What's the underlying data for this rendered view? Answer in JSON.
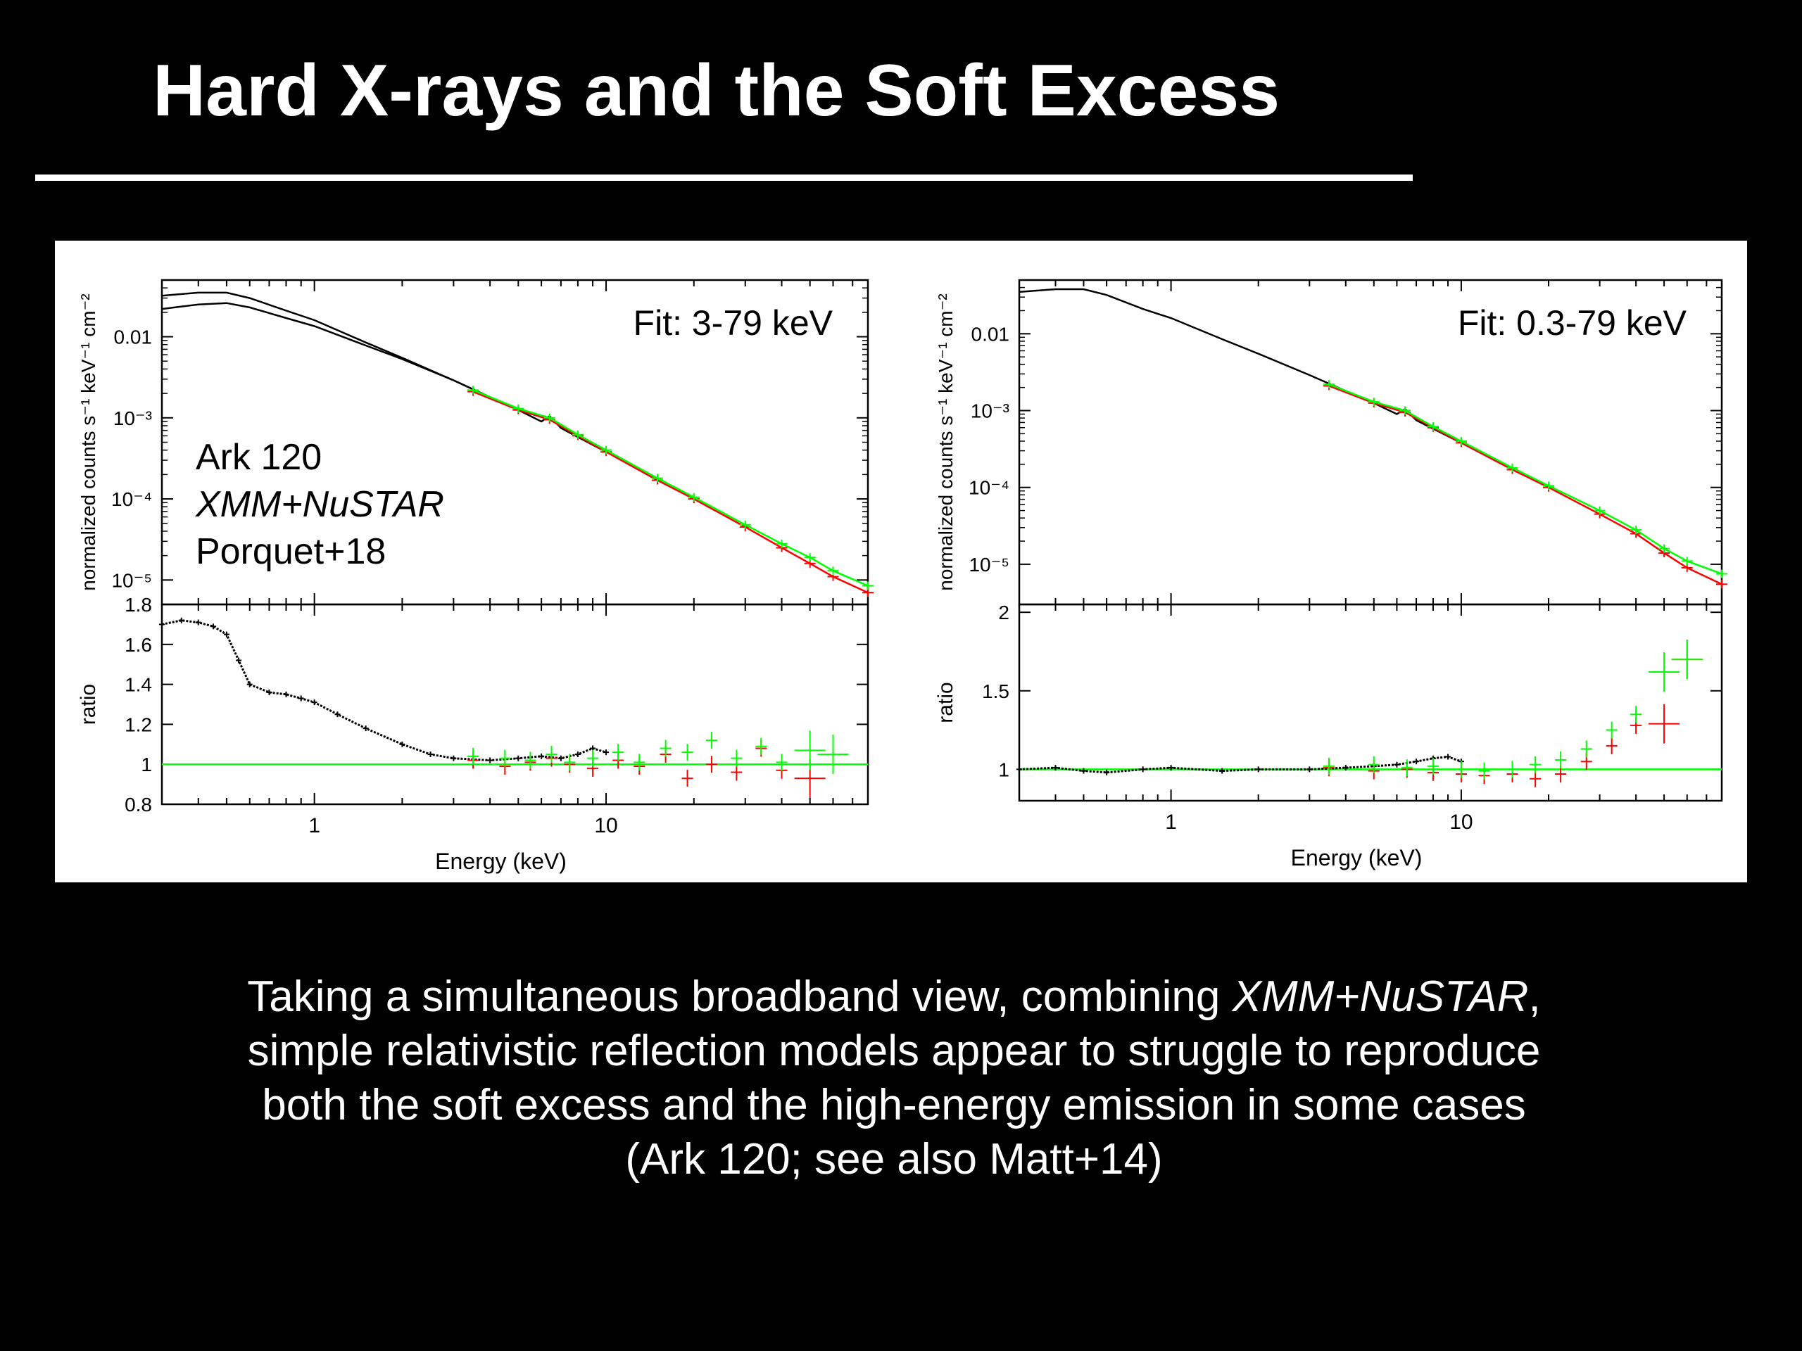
{
  "slide": {
    "title": "Hard X-rays and the Soft Excess",
    "caption": {
      "line1_pre": "Taking a simultaneous broadband view, combining ",
      "line1_em": "XMM+NuSTAR",
      "line1_post": ",",
      "line2": "simple relativistic reflection models appear to struggle to reproduce",
      "line3": "both the soft excess and the high-energy emission in some cases",
      "line4": "(Ark 120; see also Matt+14)"
    }
  },
  "colors": {
    "background": "#000000",
    "text": "#ffffff",
    "figure_background": "#ffffff",
    "xmm_data": "#000000",
    "nustar_fpma": "#ff0000",
    "nustar_fpmb": "#00ff00",
    "unity_line": "#00ff00"
  },
  "chart_data": [
    {
      "type": "line",
      "panel": "left",
      "annotation": "Fit: 3-79 keV",
      "label_lines": [
        "Ark 120",
        "XMM+NuSTAR",
        "Porquet+18"
      ],
      "xlabel": "Energy (keV)",
      "xscale": "log",
      "xlim": [
        0.3,
        79
      ],
      "xticks": [
        1,
        10
      ],
      "top": {
        "ylabel": "normalized counts s⁻¹ keV⁻¹ cm⁻²",
        "yscale": "log",
        "ylim": [
          5e-06,
          0.05
        ],
        "yticks": [
          {
            "value": 0.01,
            "label": "0.01"
          },
          {
            "value": 0.001,
            "label": "10⁻³"
          },
          {
            "value": 0.0001,
            "label": "10⁻⁴"
          },
          {
            "value": 1e-05,
            "label": "10⁻⁵"
          }
        ],
        "series": [
          {
            "instrument": "XMM data",
            "color": "#000000",
            "x": [
              0.3,
              0.4,
              0.5,
              0.6,
              0.8,
              1.0,
              1.5,
              2.0,
              3.0,
              4.0,
              5.0,
              6.0,
              6.4,
              7.0,
              8.0,
              10.0
            ],
            "y": [
              0.032,
              0.035,
              0.035,
              0.03,
              0.021,
              0.016,
              0.0085,
              0.0055,
              0.0029,
              0.0018,
              0.00125,
              0.0009,
              0.00105,
              0.00075,
              0.00058,
              0.00038
            ]
          },
          {
            "instrument": "XMM model",
            "color": "#000000",
            "x": [
              0.3,
              0.4,
              0.5,
              0.6,
              0.8,
              1.0,
              1.5,
              2.0,
              3.0,
              4.0
            ],
            "y": [
              0.022,
              0.025,
              0.026,
              0.023,
              0.017,
              0.0135,
              0.0078,
              0.0053,
              0.0029,
              0.0018
            ]
          },
          {
            "instrument": "NuSTAR FPMA",
            "color": "#ff0000",
            "x": [
              3.5,
              5.0,
              6.4,
              8.0,
              10.0,
              15.0,
              20.0,
              30.0,
              40.0,
              50.0,
              60.0,
              79.0
            ],
            "y": [
              0.0021,
              0.00125,
              0.00095,
              0.0006,
              0.00038,
              0.00017,
              0.0001,
              4.5e-05,
              2.5e-05,
              1.6e-05,
              1.1e-05,
              7e-06
            ]
          },
          {
            "instrument": "NuSTAR FPMB",
            "color": "#00ff00",
            "x": [
              3.5,
              5.0,
              6.4,
              8.0,
              10.0,
              15.0,
              20.0,
              30.0,
              40.0,
              50.0,
              60.0,
              79.0
            ],
            "y": [
              0.0022,
              0.0013,
              0.001,
              0.00062,
              0.0004,
              0.00018,
              0.000105,
              4.8e-05,
              2.8e-05,
              1.9e-05,
              1.3e-05,
              8.5e-06
            ]
          }
        ]
      },
      "bottom": {
        "ylabel": "ratio",
        "yscale": "linear",
        "ylim": [
          0.8,
          1.8
        ],
        "yticks": [
          {
            "value": 0.8,
            "label": "0.8"
          },
          {
            "value": 1.0,
            "label": "1"
          },
          {
            "value": 1.2,
            "label": "1.2"
          },
          {
            "value": 1.4,
            "label": "1.4"
          },
          {
            "value": 1.6,
            "label": "1.6"
          },
          {
            "value": 1.8,
            "label": "1.8"
          }
        ],
        "unity": 1,
        "series": [
          {
            "instrument": "XMM",
            "color": "#000000",
            "x": [
              0.3,
              0.35,
              0.4,
              0.45,
              0.5,
              0.55,
              0.6,
              0.7,
              0.8,
              0.9,
              1.0,
              1.2,
              1.5,
              2.0,
              2.5,
              3.0,
              4.0,
              5.0,
              6.0,
              7.0,
              8.0,
              9.0,
              10.0
            ],
            "y": [
              1.7,
              1.72,
              1.71,
              1.69,
              1.65,
              1.52,
              1.4,
              1.36,
              1.35,
              1.33,
              1.31,
              1.25,
              1.18,
              1.1,
              1.05,
              1.03,
              1.02,
              1.03,
              1.04,
              1.03,
              1.05,
              1.08,
              1.06
            ]
          },
          {
            "instrument": "NuSTAR FPMA",
            "color": "#ff0000",
            "x": [
              3.5,
              4.5,
              5.5,
              6.5,
              7.5,
              9.0,
              11.0,
              13.0,
              16.0,
              19.0,
              23.0,
              28.0,
              34.0,
              40.0,
              50.0,
              60.0
            ],
            "y": [
              1.02,
              0.99,
              1.01,
              1.03,
              1.0,
              0.98,
              1.02,
              0.99,
              1.05,
              0.93,
              1.0,
              0.96,
              1.08,
              0.97,
              0.93,
              1.05
            ]
          },
          {
            "instrument": "NuSTAR FPMB",
            "color": "#00ff00",
            "x": [
              3.5,
              4.5,
              5.5,
              6.5,
              7.5,
              9.0,
              11.0,
              13.0,
              16.0,
              19.0,
              23.0,
              28.0,
              34.0,
              40.0,
              50.0,
              60.0
            ],
            "y": [
              1.04,
              1.03,
              1.02,
              1.05,
              1.01,
              1.03,
              1.06,
              1.01,
              1.08,
              1.06,
              1.12,
              1.03,
              1.09,
              1.01,
              1.07,
              1.05
            ]
          }
        ]
      }
    },
    {
      "type": "line",
      "panel": "right",
      "annotation": "Fit: 0.3-79 keV",
      "label_lines": [],
      "xlabel": "Energy (keV)",
      "xscale": "log",
      "xlim": [
        0.3,
        79
      ],
      "xticks": [
        1,
        10
      ],
      "top": {
        "ylabel": "normalized counts s⁻¹ keV⁻¹ cm⁻²",
        "yscale": "log",
        "ylim": [
          3e-06,
          0.05
        ],
        "yticks": [
          {
            "value": 0.01,
            "label": "0.01"
          },
          {
            "value": 0.001,
            "label": "10⁻³"
          },
          {
            "value": 0.0001,
            "label": "10⁻⁴"
          },
          {
            "value": 1e-05,
            "label": "10⁻⁵"
          }
        ],
        "series": [
          {
            "instrument": "XMM data",
            "color": "#000000",
            "x": [
              0.3,
              0.4,
              0.5,
              0.6,
              0.8,
              1.0,
              1.5,
              2.0,
              3.0,
              4.0,
              5.0,
              6.0,
              6.4,
              7.0,
              8.0,
              10.0
            ],
            "y": [
              0.035,
              0.038,
              0.038,
              0.032,
              0.021,
              0.016,
              0.0085,
              0.0055,
              0.0029,
              0.0018,
              0.00125,
              0.0009,
              0.00105,
              0.00075,
              0.00058,
              0.00038
            ]
          },
          {
            "instrument": "NuSTAR FPMA",
            "color": "#ff0000",
            "x": [
              3.5,
              5.0,
              6.4,
              8.0,
              10.0,
              15.0,
              20.0,
              30.0,
              40.0,
              50.0,
              60.0,
              79.0
            ],
            "y": [
              0.0021,
              0.00125,
              0.00095,
              0.0006,
              0.00038,
              0.00017,
              0.0001,
              4.5e-05,
              2.5e-05,
              1.4e-05,
              9e-06,
              5.5e-06
            ]
          },
          {
            "instrument": "NuSTAR FPMB",
            "color": "#00ff00",
            "x": [
              3.5,
              5.0,
              6.4,
              8.0,
              10.0,
              15.0,
              20.0,
              30.0,
              40.0,
              50.0,
              60.0,
              79.0
            ],
            "y": [
              0.0022,
              0.0013,
              0.001,
              0.00062,
              0.0004,
              0.00018,
              0.000105,
              5e-05,
              2.8e-05,
              1.6e-05,
              1.1e-05,
              7.5e-06
            ]
          }
        ]
      },
      "bottom": {
        "ylabel": "ratio",
        "yscale": "linear",
        "ylim": [
          0.8,
          2.05
        ],
        "yticks": [
          {
            "value": 1.0,
            "label": "1"
          },
          {
            "value": 1.5,
            "label": "1.5"
          },
          {
            "value": 2.0,
            "label": "2"
          }
        ],
        "unity": 1,
        "series": [
          {
            "instrument": "XMM",
            "color": "#000000",
            "x": [
              0.3,
              0.4,
              0.5,
              0.6,
              0.8,
              1.0,
              1.5,
              2.0,
              3.0,
              4.0,
              5.0,
              6.0,
              7.0,
              8.0,
              9.0,
              10.0
            ],
            "y": [
              1.0,
              1.01,
              0.99,
              0.98,
              1.0,
              1.01,
              0.99,
              1.0,
              1.0,
              1.01,
              1.02,
              1.03,
              1.05,
              1.07,
              1.08,
              1.05
            ]
          },
          {
            "instrument": "NuSTAR FPMA",
            "color": "#ff0000",
            "x": [
              3.5,
              5.0,
              6.5,
              8.0,
              10.0,
              12.0,
              15.0,
              18.0,
              22.0,
              27.0,
              33.0,
              40.0,
              50.0,
              60.0
            ],
            "y": [
              1.01,
              0.99,
              1.0,
              0.98,
              0.97,
              0.96,
              0.97,
              0.94,
              0.97,
              1.05,
              1.15,
              1.28,
              1.29,
              1.7
            ]
          },
          {
            "instrument": "NuSTAR FPMB",
            "color": "#00ff00",
            "x": [
              3.5,
              5.0,
              6.5,
              8.0,
              10.0,
              12.0,
              15.0,
              18.0,
              22.0,
              27.0,
              33.0,
              40.0,
              50.0,
              60.0
            ],
            "y": [
              1.02,
              1.03,
              1.01,
              1.02,
              1.0,
              0.99,
              1.0,
              1.03,
              1.06,
              1.13,
              1.25,
              1.35,
              1.62,
              1.7
            ]
          }
        ]
      }
    }
  ]
}
